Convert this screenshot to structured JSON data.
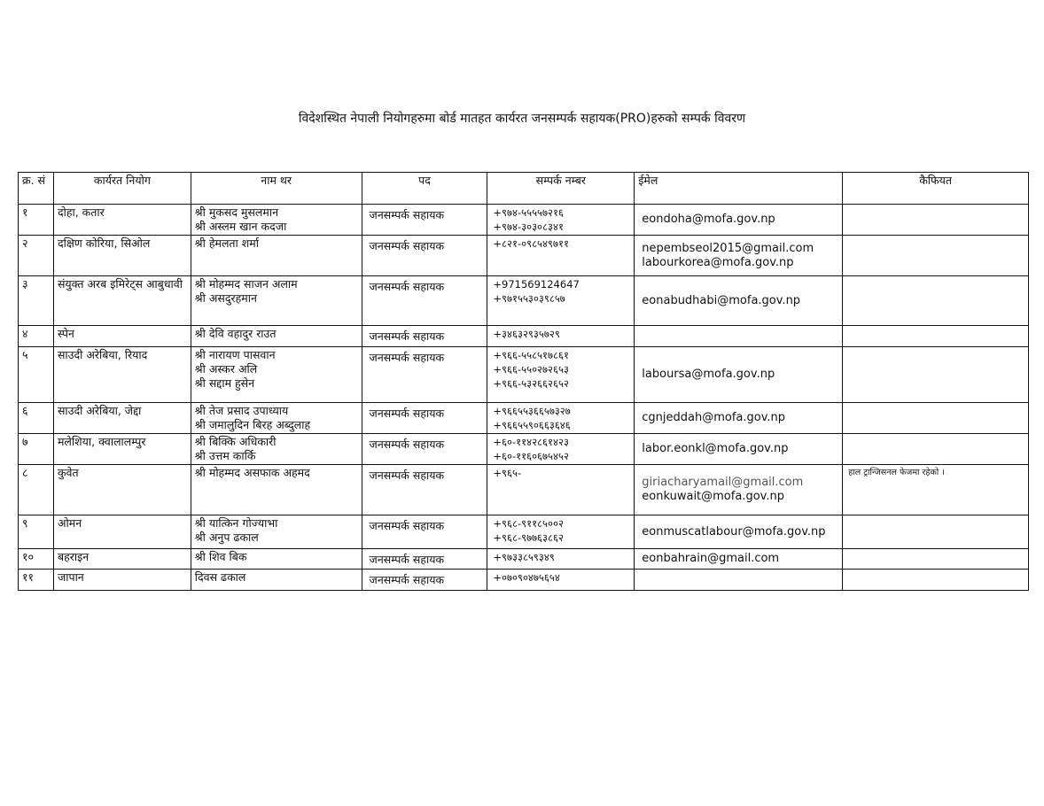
{
  "title": "विदेशस्थित नेपाली नियोगहरुमा बोर्ड मातहत कार्यरत जनसम्पर्क सहायक(PRO)हरुको सम्पर्क विवरण",
  "table": {
    "headers": [
      "क्र. सं",
      "कार्यरत नियोग",
      "नाम थर",
      "पद",
      "सम्पर्क नम्बर",
      "ईमेल",
      "कैफियत"
    ],
    "rows": [
      {
        "sn": "१",
        "mission": "दोहा, कतार",
        "names": [
          "श्री मुकसद मुसलमान",
          "श्री अस्लम खान कदजा"
        ],
        "post": "जनसम्पर्क सहायक",
        "phones": [
          "+९७४-५५५५७२१६",
          "+९७४-३०३०८३४१"
        ],
        "emails": [
          "eondoha@mofa.gov.np"
        ]
      },
      {
        "sn": "२",
        "mission": "दक्षिण कोरिया, सिओल",
        "names": [
          "श्री हेमलता शर्मा"
        ],
        "post": "जनसम्पर्क सहायक",
        "phones": [
          "+८२१-०९८५४९७११"
        ],
        "emails": [
          "nepembseol2015@gmail.com",
          "labourkorea@mofa.gov.np"
        ]
      },
      {
        "sn": "३",
        "mission": "संयुक्त अरब इमिरेट्स आबुधावी",
        "names": [
          "श्री मोहम्मद साजन अलाम",
          "श्री असदुरहमान"
        ],
        "post": "जनसम्पर्क सहायक",
        "phones": [
          "+971569124647",
          "+९७१५५३०३९८५७"
        ],
        "emails": [
          "eonabudhabi@mofa.gov.np"
        ]
      },
      {
        "sn": "४",
        "mission": "स्पेन",
        "names": [
          "श्री देवि वहादुर राउत"
        ],
        "post": "जनसम्पर्क सहायक",
        "phones": [
          "+३४६३२९३५७२९"
        ],
        "emails": []
      },
      {
        "sn": "५",
        "mission": "साउदी अरेबिया, रियाद",
        "names": [
          "श्री नारायण पासवान",
          "श्री अस्कर अलि",
          "श्री सद्दाम हुसेन"
        ],
        "post": "जनसम्पर्क सहायक",
        "phones": [
          "+९६६-५५८५१७८६१",
          "+९६६-५५०२७२६५३",
          "+९६६-५३२६६२६५२"
        ],
        "emails": [
          "laboursa@mofa.gov.np"
        ]
      },
      {
        "sn": "६",
        "mission": "साउदी अरेबिया, जेद्दा",
        "names": [
          "श्री तेज प्रसाद उपाध्याय",
          "श्री जमालुदिन बिरह अब्दुलाह"
        ],
        "post": "जनसम्पर्क सहायक",
        "phones": [
          "+९६६५५३६६५७३२७",
          "+९६६५५९०६६३६४६"
        ],
        "emails": [
          "cgnjeddah@mofa.gov.np"
        ]
      },
      {
        "sn": "७",
        "mission": "मलेशिया, क्वालालम्पुर",
        "names": [
          "श्री बिक्कि अधिकारी",
          "श्री उत्तम कार्कि"
        ],
        "post": "जनसम्पर्क सहायक",
        "phones": [
          "+६०-११४२८६१४२३",
          "+६०-११६०६७५४५२"
        ],
        "emails": [
          "labor.eonkl@mofa.gov.np"
        ]
      },
      {
        "sn": "८",
        "mission": "कुवेत",
        "names": [
          "श्री मोहम्मद असफाक अहमद"
        ],
        "post": "जनसम्पर्क सहायक",
        "phones": [
          "+९६५-"
        ],
        "emails": [
          "giriacharyamail@gmail.com",
          "eonkuwait@mofa.gov.np"
        ],
        "remarks": "हाल ट्रान्जिसनल फेजमा रहेको ।"
      },
      {
        "sn": "९",
        "mission": "ओमन",
        "names": [
          "श्री यात्किन गोज्याभा",
          "श्री अनुप ढकाल"
        ],
        "post": "जनसम्पर्क सहायक",
        "phones": [
          "+९६८-९११८५००२",
          "+९६८-९७७६३८६२"
        ],
        "emails": [
          "eonmuscatlabour@mofa.gov.np"
        ]
      },
      {
        "sn": "१०",
        "mission": "बहराइन",
        "names": [
          "श्री शिव बिक"
        ],
        "post": "जनसम्पर्क सहायक",
        "phones": [
          "+९७३३८५९३४९"
        ],
        "emails": [
          "eonbahrain@gmail.com"
        ]
      },
      {
        "sn": "११",
        "mission": "जापान",
        "names": [
          "दिवस ढकाल"
        ],
        "post": "जनसम्पर्क सहायक",
        "phones": [
          "+०७०९०४७५६५४"
        ],
        "emails": []
      }
    ]
  }
}
